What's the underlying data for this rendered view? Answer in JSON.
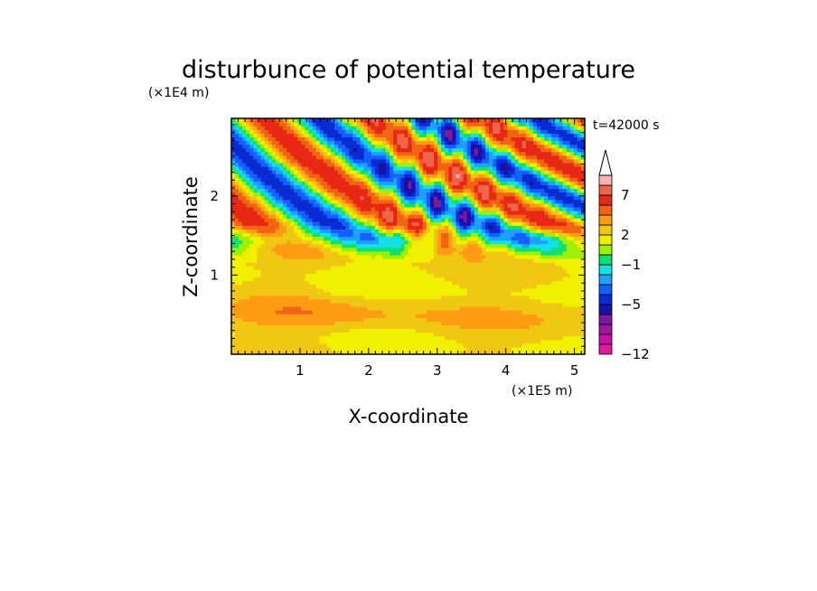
{
  "chart_data": {
    "type": "heatmap",
    "title": "disturbunce of potential temperature",
    "xlabel": "X-coordinate",
    "ylabel": "Z-coordinate",
    "x_unit": "(×1E5 m)",
    "y_unit": "(×1E4 m)",
    "time_label": "t=42000 s",
    "xlim": [
      0,
      5.15
    ],
    "ylim": [
      0,
      2.98
    ],
    "x_ticks": [
      1,
      2,
      3,
      4,
      5
    ],
    "y_ticks": [
      1,
      2
    ],
    "colorbar": {
      "bounds": [
        -12,
        -10.5,
        -9,
        -7.5,
        -6,
        -5,
        -4,
        -3,
        -2,
        -1,
        0,
        1,
        2,
        3,
        4,
        5.5,
        7,
        8.5,
        10
      ],
      "colors": [
        "#e6189c",
        "#c414a8",
        "#a0169e",
        "#7a1a9e",
        "#1a0fa6",
        "#0a2ad2",
        "#1460ff",
        "#1ea0ff",
        "#14e0e6",
        "#10e070",
        "#9ef008",
        "#f0f000",
        "#f0c814",
        "#ff9c14",
        "#f06414",
        "#e62814",
        "#f0644a",
        "#f8b4b4"
      ],
      "labels": [
        {
          "value": -12,
          "text": "−12"
        },
        {
          "value": -5,
          "text": "−5"
        },
        {
          "value": -1,
          "text": "−1"
        },
        {
          "value": 2,
          "text": "2"
        },
        {
          "value": 7,
          "text": "7"
        }
      ],
      "extend": "max"
    }
  }
}
